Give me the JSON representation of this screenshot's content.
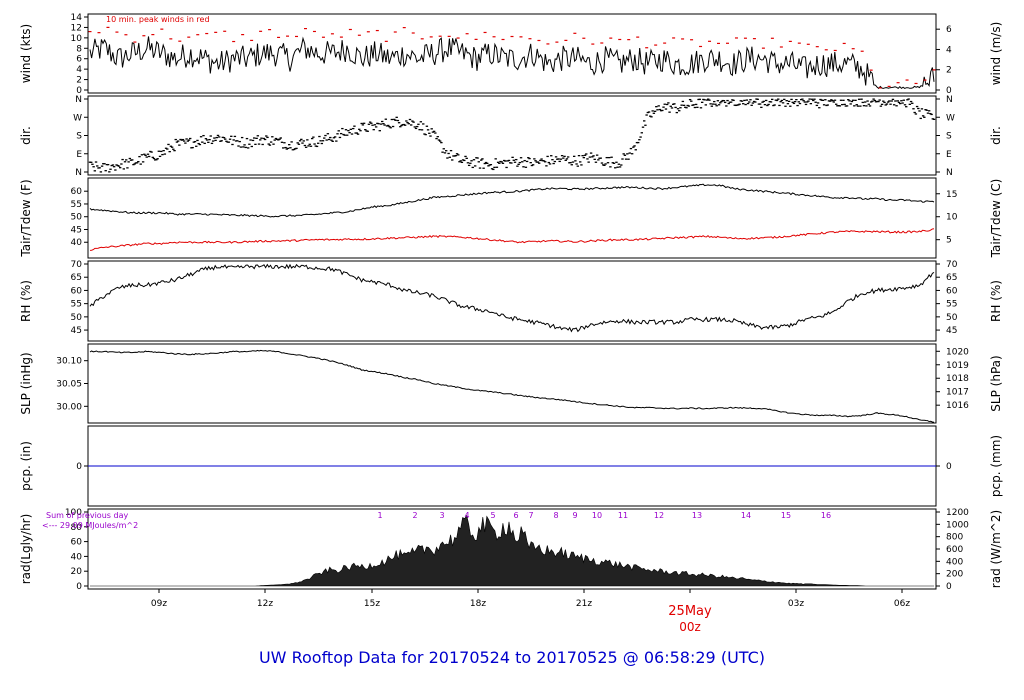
{
  "footer_title": "UW Rooftop Data for 20170524  to  20170525 @ 06:58:29  (UTC)",
  "colors": {
    "axis": "#000000",
    "trace": "#000000",
    "red": "#e00000",
    "blue": "#0000cc",
    "purple": "#9900cc"
  },
  "chart_data": [
    {
      "type": "line",
      "id": "wind",
      "ylabel": "wind (kts)",
      "ylabel_right": "wind (m/s)",
      "annotation": "10 min. peak winds in red",
      "ylim": [
        0,
        14
      ],
      "yticks": [
        0,
        2,
        4,
        6,
        8,
        10,
        12,
        14
      ],
      "yticks_right": [
        "0",
        "2",
        "4",
        "6"
      ],
      "series": [
        {
          "values": [
            7,
            8,
            6,
            7,
            8,
            7,
            6,
            7,
            6,
            5,
            6,
            6,
            7,
            7,
            6,
            8,
            7,
            7,
            8,
            6,
            7,
            6,
            7,
            6,
            7,
            8,
            7,
            6,
            7,
            6,
            6,
            7,
            5,
            6,
            6,
            5,
            6,
            5,
            6,
            5,
            6,
            5,
            5,
            6,
            6,
            5,
            6,
            6,
            5,
            5,
            4,
            5,
            5,
            5,
            4,
            0.5,
            0.5,
            0.5,
            0.5,
            2.5
          ]
        },
        {
          "values": [
            11,
            12,
            11,
            10,
            11,
            11,
            10,
            10,
            10,
            11,
            10,
            10,
            11,
            11,
            10,
            11,
            11,
            10,
            11,
            10,
            11,
            10,
            11,
            10,
            11,
            11,
            10,
            10,
            11,
            10,
            10,
            10,
            9,
            10,
            10,
            9,
            10,
            9,
            10,
            9,
            9,
            9,
            9,
            9,
            9,
            9,
            9,
            9,
            9,
            9,
            8,
            8,
            8,
            8,
            7,
            1,
            1,
            1,
            1,
            4
          ]
        }
      ]
    },
    {
      "type": "scatter",
      "id": "dir",
      "ylabel": "dir.",
      "ylabel_right": "dir.",
      "ylim": [
        0,
        4
      ],
      "yticks": [
        "N",
        "E",
        "S",
        "W",
        "N"
      ],
      "values": [
        0.3,
        0.2,
        0.4,
        0.5,
        0.8,
        1.0,
        1.5,
        1.6,
        1.8,
        1.9,
        1.7,
        1.6,
        1.8,
        1.7,
        1.5,
        1.6,
        1.7,
        1.9,
        2.2,
        2.4,
        2.5,
        2.7,
        2.8,
        2.6,
        2.0,
        1.0,
        0.6,
        0.5,
        0.4,
        0.5,
        0.6,
        0.5,
        0.6,
        0.7,
        0.6,
        0.8,
        0.6,
        0.5,
        1.2,
        3.0,
        3.6,
        3.5,
        3.7,
        3.8,
        3.9,
        3.9,
        4.0,
        3.8,
        3.9,
        3.9,
        3.9,
        3.8,
        3.9,
        3.9,
        3.9,
        3.9,
        3.9,
        3.9,
        3.2,
        3.0
      ]
    },
    {
      "type": "line",
      "id": "temp",
      "ylabel": "Tair/Tdew (F)",
      "ylabel_right": "Tair/Tdew (C)",
      "ylim": [
        35,
        64
      ],
      "yticks": [
        40,
        45,
        50,
        55,
        60
      ],
      "yticks_right": [
        "5",
        "10",
        "15"
      ],
      "series": [
        {
          "values": [
            53,
            52.5,
            52,
            51.5,
            51.5,
            51.5,
            51,
            51,
            51,
            50.8,
            50.6,
            50.5,
            50.3,
            50.2,
            50.4,
            50.6,
            51,
            51.5,
            52,
            53,
            54,
            54.5,
            55.5,
            56.5,
            57.5,
            58,
            58.5,
            59,
            59.5,
            59.7,
            60,
            60.5,
            61,
            61,
            60.8,
            61,
            61.2,
            61.5,
            61.5,
            61.2,
            61,
            61.5,
            62,
            62.5,
            62.3,
            61,
            60.5,
            60,
            59.5,
            59,
            58.5,
            58,
            57.5,
            57.5,
            57,
            57,
            56.5,
            56.5,
            56,
            56
          ]
        },
        {
          "values": [
            37,
            38,
            38.5,
            39,
            39.5,
            39.5,
            40,
            40,
            40,
            40,
            40,
            40.2,
            40.4,
            40.5,
            40.6,
            40.8,
            41,
            41,
            41.2,
            41.2,
            41.4,
            41.6,
            41.8,
            42,
            42.3,
            42.2,
            42,
            41.5,
            41,
            40.5,
            40,
            40.2,
            40.5,
            40.4,
            40.2,
            40.5,
            40.8,
            41,
            41,
            41.2,
            41.5,
            41.8,
            42,
            42.3,
            42,
            41.5,
            41.5,
            41.7,
            42,
            42.5,
            43,
            43.5,
            44,
            44.2,
            44.2,
            44.2,
            44,
            44,
            44.2,
            45
          ]
        }
      ]
    },
    {
      "type": "line",
      "id": "rh",
      "ylabel": "RH (%)",
      "ylabel_right": "RH (%)",
      "ylim": [
        42,
        70
      ],
      "yticks": [
        45,
        50,
        55,
        60,
        65,
        70
      ],
      "yticks_right": [
        "45",
        "50",
        "55",
        "60",
        "65",
        "70"
      ],
      "series": [
        {
          "values": [
            54,
            58,
            61,
            62,
            62,
            63,
            64,
            66,
            68,
            69,
            68.5,
            69,
            69,
            69,
            69,
            69,
            68.5,
            68,
            66,
            64,
            63,
            62,
            60,
            59,
            58,
            56,
            54,
            53,
            52,
            50,
            49,
            48,
            47,
            45.5,
            45,
            47,
            48,
            48.5,
            48,
            48,
            48,
            48,
            49,
            49,
            49,
            48.5,
            47,
            46,
            46,
            47,
            49,
            50,
            52,
            56,
            59,
            60,
            60.5,
            61,
            62,
            67
          ]
        }
      ]
    },
    {
      "type": "line",
      "id": "slp",
      "ylabel": "SLP (inHg)",
      "ylabel_right": "SLP (hPa)",
      "ylim": [
        29.97,
        30.13
      ],
      "yticks": [
        "30.00",
        "30.05",
        "30.10"
      ],
      "yticks_right": [
        "1016",
        "1017",
        "1018",
        "1019",
        "1020"
      ],
      "series": [
        {
          "values": [
            30.12,
            30.12,
            30.118,
            30.118,
            30.12,
            30.118,
            30.115,
            30.114,
            30.115,
            30.117,
            30.12,
            30.12,
            30.122,
            30.12,
            30.115,
            30.11,
            30.105,
            30.098,
            30.09,
            30.08,
            30.075,
            30.07,
            30.063,
            30.058,
            30.05,
            30.045,
            30.04,
            30.035,
            30.032,
            30.028,
            30.024,
            30.02,
            30.017,
            30.014,
            30.01,
            30.006,
            30.003,
            30.0,
            29.997,
            29.997,
            29.996,
            29.995,
            29.996,
            29.995,
            29.996,
            29.997,
            29.996,
            29.995,
            29.99,
            29.985,
            29.982,
            29.98,
            29.98,
            29.978,
            29.98,
            29.985,
            29.982,
            29.978,
            29.97,
            29.966
          ]
        }
      ]
    },
    {
      "type": "line",
      "id": "pcp",
      "ylabel": "pcp. (in)",
      "ylabel_right": "pcp. (mm)",
      "ylim": [
        -1,
        1
      ],
      "yticks": [
        "0"
      ],
      "yticks_right": [
        "0"
      ],
      "series": [
        {
          "values": [
            0,
            0
          ]
        }
      ]
    },
    {
      "type": "area",
      "id": "rad",
      "ylabel": "rad(Lgly/hr)",
      "ylabel_right": "rad (W/m^2)",
      "annotation_1": "Sum of previous day",
      "annotation_2": "<--- 29.09 MJoules/m^2",
      "ylim": [
        0,
        100
      ],
      "yticks": [
        "0",
        "20",
        "40",
        "60",
        "80",
        "100"
      ],
      "yticks_right": [
        "0",
        "200",
        "400",
        "600",
        "800",
        "1000",
        "1200"
      ],
      "hour_marks": [
        "1",
        "2",
        "3",
        "4",
        "5",
        "6",
        "7",
        "8",
        "9",
        "10",
        "11",
        "12",
        "13",
        "14",
        "15",
        "16"
      ],
      "series": [
        {
          "values": [
            0,
            0,
            0,
            0,
            0,
            0,
            0,
            0,
            0,
            0,
            0,
            0,
            0,
            0,
            0,
            0,
            0,
            0,
            0,
            0,
            0,
            0,
            0,
            0,
            0,
            0.5,
            1,
            1.5,
            2,
            3,
            5,
            8,
            12,
            18,
            22,
            26,
            24,
            28,
            30,
            32,
            30,
            34,
            36,
            40,
            45,
            50,
            46,
            52,
            56,
            60,
            58,
            65,
            70,
            75,
            90,
            98,
            80,
            96,
            94,
            84,
            92,
            98,
            75,
            84,
            60,
            62,
            58,
            55,
            54,
            52,
            48,
            46,
            44,
            42,
            40,
            38,
            36,
            34,
            32,
            30,
            28,
            26,
            25,
            24,
            22,
            22,
            20,
            20,
            18,
            18,
            17,
            16,
            15,
            14,
            12,
            12,
            10,
            9,
            8,
            7,
            6,
            5,
            4,
            4,
            3,
            3,
            2,
            2,
            1.5,
            1,
            1,
            0.5,
            0.5,
            0,
            0,
            0,
            0,
            0,
            0,
            0,
            0,
            0,
            0,
            0
          ]
        }
      ]
    }
  ],
  "xaxis": {
    "ticks": [
      "09z",
      "12z",
      "15z",
      "18z",
      "21z",
      "00z",
      "03z",
      "06z"
    ],
    "date_label": "25May"
  }
}
